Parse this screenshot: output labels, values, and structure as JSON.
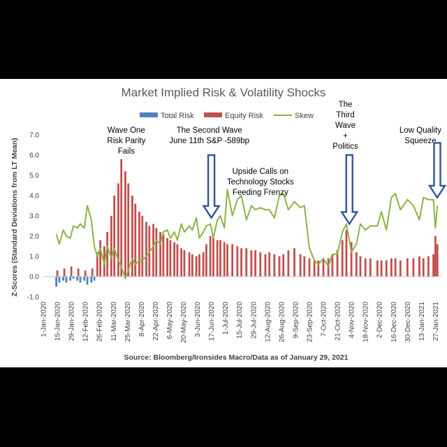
{
  "chart_data": {
    "type": "bar",
    "title": "Market Implied Risk & Volatility Shocks",
    "ylabel": "Z-Scores (Standard Deviations from LT Mean)",
    "xlabel": "",
    "source": "Source: Bloomberg/Ironsides Macro/Data as of January 29, 2021",
    "ylim": [
      -1.0,
      7.0
    ],
    "yticks": [
      "-1.0",
      "0.0",
      "1.0",
      "2.0",
      "3.0",
      "4.0",
      "5.0",
      "6.0",
      "7.0"
    ],
    "xticks": [
      "1-Jan-2020",
      "15-Jan-2020",
      "29-Jan-2020",
      "12-Feb-2020",
      "26-Feb-2020",
      "11-Mar-2020",
      "25-Mar-2020",
      "8-Apr-2020",
      "22-Apr-2020",
      "6-May-2020",
      "20-May-2020",
      "3-Jun-2020",
      "17-Jun-2020",
      "1-Jul-2020",
      "15-Jul-2020",
      "29-Jul-2020",
      "12-Aug-2020",
      "26-Aug-2020",
      "9-Sep-2020",
      "23-Sep-2020",
      "7-Oct-2020",
      "21-Oct-2020",
      "4-Nov-2020",
      "18-Nov-2020",
      "2-Dec-2020",
      "16-Dec-2020",
      "30-Dec-2020",
      "13-Jan-2021",
      "27-Jan-2021"
    ],
    "legend_position": "top",
    "grid": false,
    "series": [
      {
        "name": "Total Risk",
        "color": "#4f81bd",
        "type": "bar",
        "x": [
          "2020-01-14",
          "2020-01-17",
          "2020-01-21",
          "2020-01-24",
          "2020-01-28",
          "2020-01-31",
          "2020-02-04",
          "2020-02-07",
          "2020-02-11",
          "2020-02-14",
          "2020-02-18",
          "2020-02-21"
        ],
        "y": [
          -0.5,
          -0.3,
          -0.2,
          -0.3,
          -0.2,
          -0.1,
          -0.2,
          -0.3,
          -0.2,
          -0.4,
          -0.3,
          -0.2
        ]
      },
      {
        "name": "Equity Risk",
        "color": "#c0504d",
        "type": "bar",
        "x": [
          "2020-01-15",
          "2020-01-22",
          "2020-01-29",
          "2020-02-05",
          "2020-02-12",
          "2020-02-19",
          "2020-02-24",
          "2020-02-27",
          "2020-03-02",
          "2020-03-05",
          "2020-03-09",
          "2020-03-12",
          "2020-03-16",
          "2020-03-19",
          "2020-03-23",
          "2020-03-26",
          "2020-03-30",
          "2020-04-02",
          "2020-04-06",
          "2020-04-09",
          "2020-04-13",
          "2020-04-16",
          "2020-04-20",
          "2020-04-23",
          "2020-04-27",
          "2020-04-30",
          "2020-05-04",
          "2020-05-07",
          "2020-05-11",
          "2020-05-14",
          "2020-05-18",
          "2020-05-21",
          "2020-05-26",
          "2020-05-29",
          "2020-06-02",
          "2020-06-05",
          "2020-06-09",
          "2020-06-12",
          "2020-06-16",
          "2020-06-19",
          "2020-06-23",
          "2020-06-26",
          "2020-06-30",
          "2020-07-03",
          "2020-07-08",
          "2020-07-13",
          "2020-07-17",
          "2020-07-22",
          "2020-07-27",
          "2020-07-31",
          "2020-08-05",
          "2020-08-10",
          "2020-08-14",
          "2020-08-19",
          "2020-08-24",
          "2020-08-28",
          "2020-09-02",
          "2020-09-08",
          "2020-09-14",
          "2020-09-18",
          "2020-09-23",
          "2020-09-28",
          "2020-10-02",
          "2020-10-07",
          "2020-10-12",
          "2020-10-16",
          "2020-10-21",
          "2020-10-26",
          "2020-10-30",
          "2020-11-04",
          "2020-11-09",
          "2020-11-13",
          "2020-11-18",
          "2020-11-23",
          "2020-11-30",
          "2020-12-04",
          "2020-12-09",
          "2020-12-14",
          "2020-12-18",
          "2020-12-23",
          "2020-12-30",
          "2021-01-05",
          "2021-01-11",
          "2021-01-15",
          "2021-01-20",
          "2021-01-25",
          "2021-01-27",
          "2021-01-29"
        ],
        "y": [
          0.3,
          0.4,
          0.5,
          0.4,
          0.3,
          0.4,
          1.2,
          1.8,
          1.5,
          2.2,
          3.0,
          4.0,
          4.6,
          5.8,
          5.2,
          4.6,
          4.0,
          3.6,
          3.2,
          3.0,
          2.7,
          2.5,
          2.6,
          2.4,
          2.2,
          2.1,
          1.9,
          1.8,
          1.7,
          1.6,
          1.4,
          1.3,
          1.2,
          1.1,
          1.0,
          1.1,
          1.2,
          1.6,
          2.0,
          1.9,
          1.8,
          1.8,
          1.7,
          1.6,
          1.6,
          1.5,
          1.4,
          1.4,
          1.3,
          1.3,
          1.2,
          1.1,
          1.2,
          1.1,
          1.0,
          1.1,
          1.3,
          1.4,
          1.1,
          1.0,
          0.9,
          0.8,
          0.8,
          0.9,
          0.9,
          1.1,
          1.3,
          1.8,
          2.3,
          1.7,
          1.2,
          1.0,
          0.9,
          0.9,
          0.8,
          0.8,
          0.8,
          0.9,
          0.9,
          0.8,
          0.9,
          0.9,
          1.0,
          0.9,
          1.0,
          1.1,
          2.0,
          1.6
        ]
      },
      {
        "name": "Skew",
        "color": "#8cb346",
        "type": "line",
        "x": [
          "2020-01-14",
          "2020-01-17",
          "2020-01-21",
          "2020-01-24",
          "2020-01-28",
          "2020-01-31",
          "2020-02-04",
          "2020-02-07",
          "2020-02-11",
          "2020-02-14",
          "2020-02-18",
          "2020-02-21",
          "2020-02-24",
          "2020-02-27",
          "2020-03-02",
          "2020-03-05",
          "2020-03-09",
          "2020-03-12",
          "2020-03-16",
          "2020-03-19",
          "2020-03-23",
          "2020-03-26",
          "2020-03-30",
          "2020-04-02",
          "2020-04-06",
          "2020-04-09",
          "2020-04-13",
          "2020-04-16",
          "2020-04-20",
          "2020-04-23",
          "2020-04-27",
          "2020-04-30",
          "2020-05-04",
          "2020-05-07",
          "2020-05-11",
          "2020-05-14",
          "2020-05-18",
          "2020-05-21",
          "2020-05-26",
          "2020-05-29",
          "2020-06-02",
          "2020-06-05",
          "2020-06-09",
          "2020-06-12",
          "2020-06-16",
          "2020-06-19",
          "2020-06-23",
          "2020-06-26",
          "2020-06-30",
          "2020-07-03",
          "2020-07-08",
          "2020-07-13",
          "2020-07-17",
          "2020-07-22",
          "2020-07-27",
          "2020-07-31",
          "2020-08-05",
          "2020-08-10",
          "2020-08-14",
          "2020-08-19",
          "2020-08-24",
          "2020-08-28",
          "2020-09-02",
          "2020-09-08",
          "2020-09-14",
          "2020-09-18",
          "2020-09-23",
          "2020-09-28",
          "2020-10-02",
          "2020-10-07",
          "2020-10-12",
          "2020-10-16",
          "2020-10-21",
          "2020-10-26",
          "2020-10-30",
          "2020-11-04",
          "2020-11-09",
          "2020-11-13",
          "2020-11-18",
          "2020-11-23",
          "2020-11-30",
          "2020-12-04",
          "2020-12-09",
          "2020-12-14",
          "2020-12-18",
          "2020-12-23",
          "2020-12-30",
          "2021-01-05",
          "2021-01-11",
          "2021-01-15",
          "2021-01-20",
          "2021-01-25",
          "2021-01-27",
          "2021-01-29"
        ],
        "y": [
          2.1,
          1.6,
          2.3,
          2.0,
          1.9,
          2.5,
          2.4,
          2.6,
          2.4,
          3.5,
          2.8,
          1.5,
          1.0,
          1.4,
          0.6,
          1.5,
          0.9,
          1.4,
          0.8,
          0.5,
          -0.1,
          0.3,
          0.9,
          0.6,
          0.8,
          0.8,
          1.0,
          1.2,
          1.5,
          1.8,
          1.6,
          2.2,
          2.3,
          1.9,
          2.2,
          1.8,
          2.6,
          2.2,
          2.5,
          2.3,
          2.9,
          1.9,
          2.2,
          2.5,
          2.6,
          1.9,
          2.8,
          3.0,
          2.4,
          4.3,
          3.0,
          3.8,
          4.0,
          2.8,
          3.5,
          3.3,
          3.4,
          3.3,
          3.3,
          2.9,
          4.0,
          4.1,
          3.3,
          3.7,
          3.4,
          3.5,
          1.4,
          0.8,
          0.6,
          0.9,
          0.5,
          1.1,
          1.1,
          2.2,
          2.6,
          1.2,
          1.6,
          2.6,
          2.3,
          2.5,
          2.5,
          3.2,
          2.3,
          3.9,
          4.1,
          3.3,
          3.8,
          3.5,
          2.8,
          3.9,
          3.8,
          3.8,
          2.4,
          3.5
        ]
      }
    ],
    "annotations": [
      {
        "lines": [
          "Wave  One",
          "Risk Parity",
          "Fails"
        ],
        "anchor_date": "2020-03-24"
      },
      {
        "lines": [
          "The Second Wave",
          "June 11th S&P -589bp"
        ],
        "anchor_date": "2020-06-15"
      },
      {
        "lines": [
          "Upside Calls on",
          "Technology Stocks",
          "Feeding Frenzy"
        ],
        "anchor_date": "2020-08-05"
      },
      {
        "lines": [
          "The",
          "Third",
          "Wave",
          "+",
          "Politics"
        ],
        "anchor_date": "2020-10-29"
      },
      {
        "lines": [
          "Low Quality",
          "Squeeze"
        ],
        "anchor_date": "2021-01-12"
      }
    ],
    "arrows": [
      {
        "date": "2020-06-17",
        "from_y": 6.0,
        "to_y": 2.9
      },
      {
        "date": "2020-11-02",
        "from_y": 6.0,
        "to_y": 2.6
      },
      {
        "date": "2021-01-30",
        "from_y": 6.6,
        "to_y": 3.9
      }
    ]
  }
}
